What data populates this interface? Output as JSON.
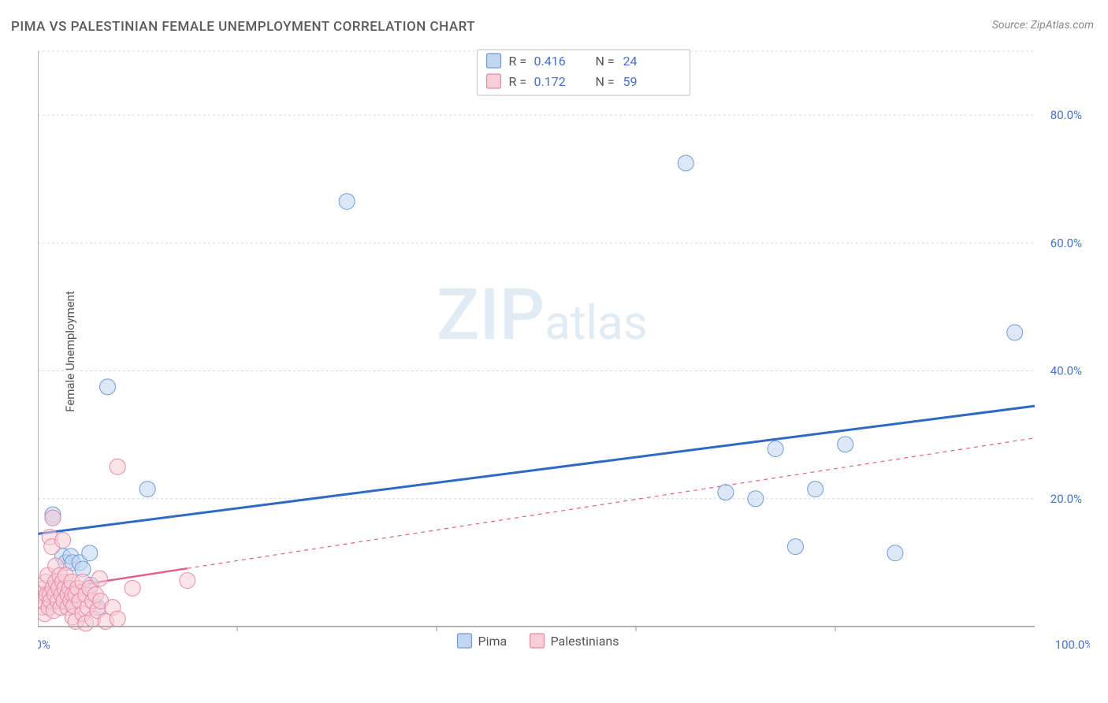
{
  "title": "PIMA VS PALESTINIAN FEMALE UNEMPLOYMENT CORRELATION CHART",
  "source_label": "Source: ZipAtlas.com",
  "y_axis_label": "Female Unemployment",
  "watermark": {
    "part1": "ZIP",
    "part2": "atlas"
  },
  "chart": {
    "type": "scatter",
    "background_color": "#ffffff",
    "grid_color": "#d9d9d9",
    "axis_color": "#999999",
    "xlim": [
      0,
      100
    ],
    "ylim": [
      0,
      90
    ],
    "x_ticks": [
      {
        "v": 0,
        "label": "0.0%"
      },
      {
        "v": 100,
        "label": "100.0%"
      }
    ],
    "x_minor_ticks": [
      20,
      40,
      60,
      80
    ],
    "y_ticks": [
      {
        "v": 20,
        "label": "20.0%"
      },
      {
        "v": 40,
        "label": "40.0%"
      },
      {
        "v": 60,
        "label": "60.0%"
      },
      {
        "v": 80,
        "label": "80.0%"
      }
    ],
    "series": [
      {
        "name": "Pima",
        "marker_color": "#c1d6f0",
        "marker_stroke": "#6f9bd8",
        "marker_radius": 10,
        "trendline_color": "#2e69c4",
        "trendline": {
          "x1": 0,
          "y1": 14.5,
          "x2": 100,
          "y2": 34.5
        },
        "r_value": "0.416",
        "n_value": "24",
        "points": [
          [
            1.5,
            17.5
          ],
          [
            1.5,
            17
          ],
          [
            2.5,
            11
          ],
          [
            2.8,
            10
          ],
          [
            3.2,
            3.5
          ],
          [
            3.3,
            11
          ],
          [
            3.5,
            10
          ],
          [
            4.2,
            10
          ],
          [
            4.5,
            9
          ],
          [
            5.2,
            11.5
          ],
          [
            5.3,
            6.5
          ],
          [
            6,
            3
          ],
          [
            7,
            37.5
          ],
          [
            11,
            21.5
          ],
          [
            31,
            66.5
          ],
          [
            65,
            72.5
          ],
          [
            69,
            21
          ],
          [
            72,
            20
          ],
          [
            74,
            27.8
          ],
          [
            76,
            12.5
          ],
          [
            78,
            21.5
          ],
          [
            81,
            28.5
          ],
          [
            86,
            11.5
          ],
          [
            98,
            46
          ]
        ]
      },
      {
        "name": "Palestinians",
        "marker_color": "#f6cdd8",
        "marker_stroke": "#e88aa3",
        "marker_radius": 10,
        "trendline_color": "#e45f87",
        "trendline_solid_end": 15,
        "trendline": {
          "x1": 0,
          "y1": 5.5,
          "x2": 100,
          "y2": 29.5
        },
        "r_value": "0.172",
        "n_value": "59",
        "points": [
          [
            0.3,
            5
          ],
          [
            0.5,
            3
          ],
          [
            0.5,
            4
          ],
          [
            0.6,
            6
          ],
          [
            0.7,
            2
          ],
          [
            0.8,
            7
          ],
          [
            0.9,
            5
          ],
          [
            1.0,
            8
          ],
          [
            1.1,
            3
          ],
          [
            1.2,
            5
          ],
          [
            1.2,
            14
          ],
          [
            1.3,
            4
          ],
          [
            1.4,
            12.5
          ],
          [
            1.5,
            6
          ],
          [
            1.5,
            17
          ],
          [
            1.6,
            2.5
          ],
          [
            1.7,
            5
          ],
          [
            1.8,
            7
          ],
          [
            1.8,
            9.5
          ],
          [
            2.0,
            4
          ],
          [
            2.1,
            6
          ],
          [
            2.2,
            8
          ],
          [
            2.3,
            3
          ],
          [
            2.4,
            5
          ],
          [
            2.5,
            7
          ],
          [
            2.5,
            13.5
          ],
          [
            2.6,
            4
          ],
          [
            2.7,
            6
          ],
          [
            2.8,
            8
          ],
          [
            3.0,
            5
          ],
          [
            3.0,
            3
          ],
          [
            3.2,
            6
          ],
          [
            3.3,
            4
          ],
          [
            3.4,
            7
          ],
          [
            3.5,
            5
          ],
          [
            3.5,
            1.5
          ],
          [
            3.6,
            3.2
          ],
          [
            3.8,
            5
          ],
          [
            3.8,
            0.8
          ],
          [
            4.0,
            6
          ],
          [
            4.2,
            4
          ],
          [
            4.5,
            2
          ],
          [
            4.5,
            7
          ],
          [
            4.8,
            5
          ],
          [
            4.8,
            0.5
          ],
          [
            5.0,
            3
          ],
          [
            5.2,
            6
          ],
          [
            5.5,
            4
          ],
          [
            5.5,
            1.2
          ],
          [
            5.8,
            5
          ],
          [
            6.0,
            2.5
          ],
          [
            6.3,
            4
          ],
          [
            6.8,
            0.8
          ],
          [
            7.5,
            3
          ],
          [
            8.0,
            1.2
          ],
          [
            8,
            25
          ],
          [
            9.5,
            6
          ],
          [
            15,
            7.2
          ],
          [
            6.2,
            7.5
          ]
        ]
      }
    ]
  },
  "legend_top": {
    "border_color": "#cccccc",
    "items": [
      {
        "swatch_fill": "#c1d6f0",
        "swatch_stroke": "#6f9bd8",
        "r_label": "R =",
        "r_value": "0.416",
        "n_label": "N =",
        "n_value": "24"
      },
      {
        "swatch_fill": "#f6cdd8",
        "swatch_stroke": "#e88aa3",
        "r_label": "R =",
        "r_value": "0.172",
        "n_label": "N =",
        "n_value": "59"
      }
    ]
  },
  "legend_bottom": {
    "items": [
      {
        "swatch_fill": "#c1d6f0",
        "swatch_stroke": "#6f9bd8",
        "label": "Pima"
      },
      {
        "swatch_fill": "#f6cdd8",
        "swatch_stroke": "#e88aa3",
        "label": "Palestinians"
      }
    ]
  }
}
